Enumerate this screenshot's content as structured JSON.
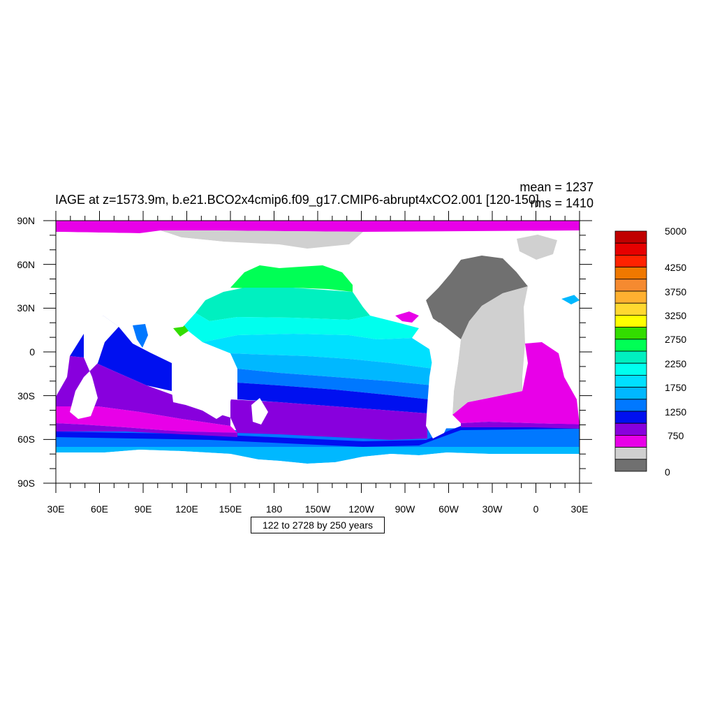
{
  "plot": {
    "title": "IAGE at z=1573.9m, b.e21.BCO2x4cmip6.f09_g17.CMIP6-abrupt4xCO2.001 [120-150]",
    "mean_label": "mean = 1237",
    "rms_label": "rms = 1410",
    "note": "122 to 2728 by 250 years"
  },
  "axes": {
    "x_ticks": [
      "30E",
      "60E",
      "90E",
      "120E",
      "150E",
      "180",
      "150W",
      "120W",
      "90W",
      "60W",
      "30W",
      "0",
      "30E"
    ],
    "y_ticks": [
      "90N",
      "60N",
      "30N",
      "0",
      "30S",
      "60S",
      "90S"
    ]
  },
  "colorbar": {
    "labels": [
      "5000",
      "4250",
      "3750",
      "3250",
      "2750",
      "2250",
      "1750",
      "1250",
      "750",
      "0"
    ],
    "colors": [
      "#c00000",
      "#e60000",
      "#ff2200",
      "#f07800",
      "#f58a30",
      "#ffb030",
      "#ffd830",
      "#ffff00",
      "#33dd00",
      "#00ff55",
      "#00f0c0",
      "#00ffee",
      "#00e0ff",
      "#00b8ff",
      "#0078ff",
      "#0010f0",
      "#8800dd",
      "#e800e8",
      "#d0d0d0",
      "#707070"
    ]
  },
  "chart_data": {
    "type": "heatmap",
    "title": "IAGE at z=1573.9m, b.e21.BCO2x4cmip6.f09_g17.CMIP6-abrupt4xCO2.001 [120-150]",
    "xlim": [
      30,
      390
    ],
    "ylim": [
      -90,
      90
    ],
    "x_tick_labels": [
      "30E",
      "60E",
      "90E",
      "120E",
      "150E",
      "180",
      "150W",
      "120W",
      "90W",
      "60W",
      "30W",
      "0",
      "30E"
    ],
    "y_tick_labels": [
      "90N",
      "60N",
      "30N",
      "0",
      "30S",
      "60S",
      "90S"
    ],
    "colorbar_labels": [
      "5000",
      "4250",
      "3750",
      "3250",
      "2750",
      "2250",
      "1750",
      "1250",
      "750",
      "0"
    ],
    "mean": 1237,
    "rms": 1410
  }
}
